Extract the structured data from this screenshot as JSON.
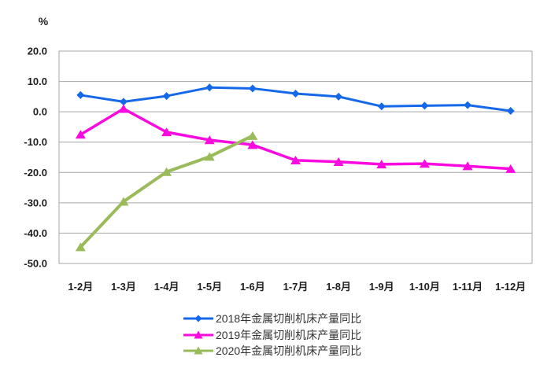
{
  "chart_data": {
    "type": "line",
    "unit_label": "%",
    "categories": [
      "1-2月",
      "1-3月",
      "1-4月",
      "1-5月",
      "1-6月",
      "1-7月",
      "1-8月",
      "1-9月",
      "1-10月",
      "1-11月",
      "1-12月"
    ],
    "yticks": [
      "20.0",
      "10.0",
      "0.0",
      "-10.0",
      "-20.0",
      "-30.0",
      "-40.0",
      "-50.0"
    ],
    "ylim": [
      -50,
      20
    ],
    "grid": true,
    "legend_position": "bottom",
    "series": [
      {
        "name": "2018年金属切削机床产量同比",
        "color": "#1569E8",
        "marker": "diamond",
        "values": [
          5.5,
          3.3,
          5.2,
          8.0,
          7.7,
          6.0,
          5.0,
          1.8,
          2.0,
          2.2,
          0.3
        ]
      },
      {
        "name": "2019年金属切削机床产量同比",
        "color": "#F90ADF",
        "marker": "triangle",
        "values": [
          -7.5,
          1.0,
          -6.7,
          -9.3,
          -10.9,
          -16.0,
          -16.5,
          -17.3,
          -17.1,
          -17.9,
          -18.8
        ]
      },
      {
        "name": "2020年金属切削机床产量同比",
        "color": "#9ABB59",
        "marker": "triangle",
        "values": [
          -44.6,
          -29.6,
          -19.8,
          -14.8,
          -7.9,
          null,
          null,
          null,
          null,
          null,
          null
        ]
      }
    ]
  },
  "colors": {
    "gridline": "#A6A6A6",
    "axis_text": "#1F1F1F",
    "legend_text": "#333333",
    "background": "#FFFFFF"
  }
}
